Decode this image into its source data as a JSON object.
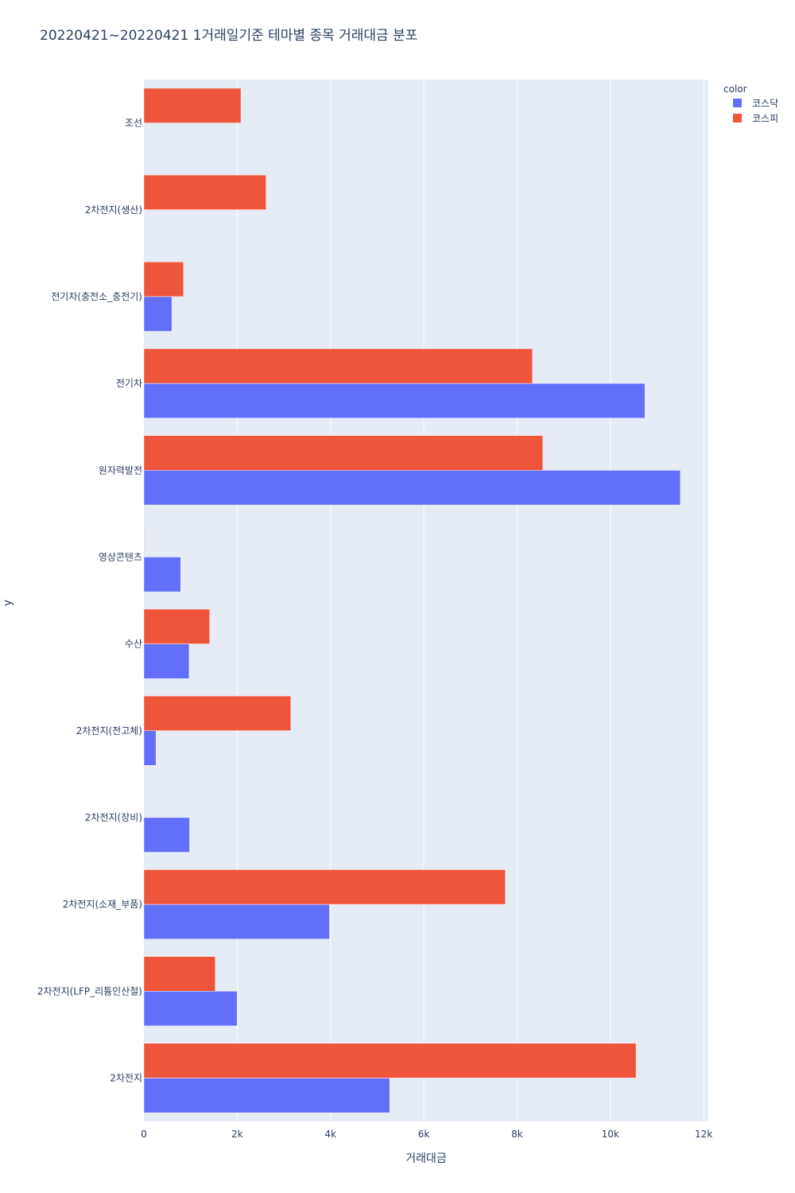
{
  "chart_data": {
    "type": "bar",
    "orientation": "horizontal",
    "barmode": "group",
    "title": "20220421~20220421 1거래일기준 테마별 종목 거래대금 분포",
    "xlabel": "거래대금",
    "ylabel": "y",
    "xlim": [
      0,
      12100
    ],
    "x_ticks": [
      0,
      2000,
      4000,
      6000,
      8000,
      10000,
      12000
    ],
    "x_tick_labels": [
      "0",
      "2k",
      "4k",
      "6k",
      "8k",
      "10k",
      "12k"
    ],
    "categories": [
      "2차전지",
      "2차전지(LFP_리튬인산철)",
      "2차전지(소재_부품)",
      "2차전지(장비)",
      "2차전지(전고체)",
      "수산",
      "영상콘텐츠",
      "원자력발전",
      "전기차",
      "전기차(충전소_충전기)",
      "2차전지(생산)",
      "조선"
    ],
    "legend_title": "color",
    "legend_position": "top-right",
    "series": [
      {
        "name": "코스닥",
        "color": "#636efa",
        "values": [
          5270,
          2000,
          3980,
          980,
          260,
          970,
          790,
          11500,
          10740,
          600,
          null,
          null
        ]
      },
      {
        "name": "코스피",
        "color": "#ef553b",
        "values": [
          10550,
          1530,
          7750,
          null,
          3150,
          1410,
          10,
          8550,
          8330,
          850,
          2620,
          2080
        ]
      }
    ]
  }
}
